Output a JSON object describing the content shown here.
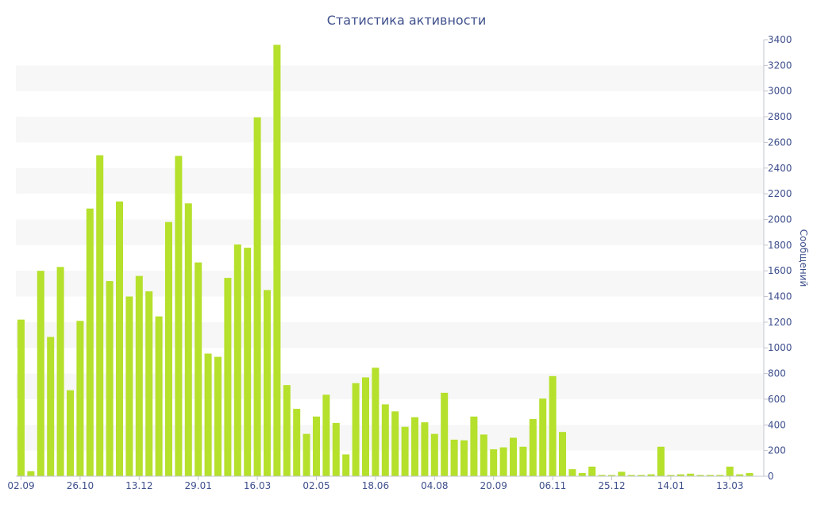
{
  "chart_data": {
    "type": "bar",
    "title": "Статистика активности",
    "ylabel": "Сообщений",
    "xlabel": "",
    "ylim": [
      0,
      3400
    ],
    "yticks": [
      0,
      200,
      400,
      600,
      800,
      1000,
      1200,
      1400,
      1600,
      1800,
      2000,
      2200,
      2400,
      2600,
      2800,
      3000,
      3200,
      3400
    ],
    "y_axis_position": "right",
    "grid": "alternating horizontal bands",
    "bar_color": "#b5e02c",
    "text_color": "#3e4f8c",
    "band_color": "#f7f7f7",
    "x_tick_labels": [
      {
        "index": 0,
        "label": "02.09"
      },
      {
        "index": 6,
        "label": "26.10"
      },
      {
        "index": 12,
        "label": "13.12"
      },
      {
        "index": 18,
        "label": "29.01"
      },
      {
        "index": 24,
        "label": "16.03"
      },
      {
        "index": 30,
        "label": "02.05"
      },
      {
        "index": 36,
        "label": "18.06"
      },
      {
        "index": 42,
        "label": "04.08"
      },
      {
        "index": 48,
        "label": "20.09"
      },
      {
        "index": 54,
        "label": "06.11"
      },
      {
        "index": 60,
        "label": "25.12"
      },
      {
        "index": 66,
        "label": "14.01"
      },
      {
        "index": 72,
        "label": "13.03"
      }
    ],
    "values": [
      1220,
      40,
      1600,
      1085,
      1630,
      670,
      1210,
      2085,
      2500,
      1520,
      2140,
      1400,
      1560,
      1440,
      1245,
      1980,
      2495,
      2125,
      1665,
      955,
      930,
      1545,
      1805,
      1780,
      2795,
      1450,
      3360,
      710,
      525,
      330,
      465,
      635,
      415,
      170,
      725,
      770,
      845,
      560,
      505,
      385,
      460,
      420,
      330,
      650,
      285,
      280,
      465,
      325,
      210,
      225,
      300,
      230,
      445,
      605,
      780,
      345,
      55,
      25,
      75,
      10,
      10,
      35,
      10,
      10,
      15,
      230,
      10,
      15,
      20,
      10,
      10,
      10,
      75,
      15,
      25
    ]
  }
}
